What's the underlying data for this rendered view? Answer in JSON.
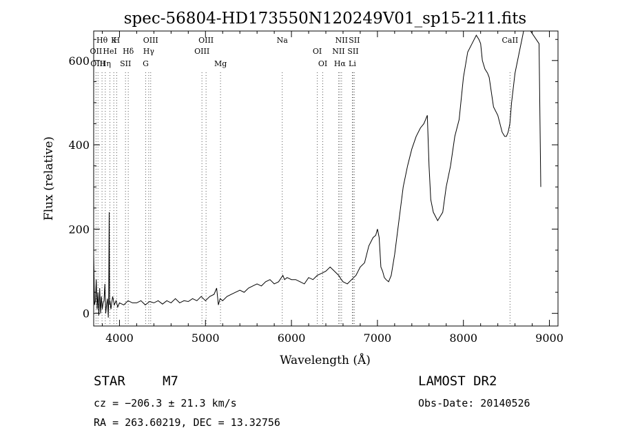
{
  "chart_data": {
    "type": "line",
    "title": "spec-56804-HD173550N120249V01_sp15-211.fits",
    "xlabel": "Wavelength (Å)",
    "ylabel": "Flux (relative)",
    "xlim": [
      3700,
      9100
    ],
    "ylim": [
      -30,
      670
    ],
    "xticks": [
      4000,
      5000,
      6000,
      7000,
      8000,
      9000
    ],
    "yticks": [
      0,
      200,
      400,
      600
    ],
    "grid": false,
    "series": [
      {
        "x": [
          3700,
          3710,
          3720,
          3730,
          3740,
          3750,
          3760,
          3770,
          3780,
          3790,
          3800,
          3810,
          3820,
          3830,
          3840,
          3850,
          3860,
          3870,
          3875,
          3880,
          3885,
          3890,
          3900,
          3920,
          3940,
          3960,
          3980,
          4000,
          4050,
          4100,
          4150,
          4200,
          4250,
          4300,
          4350,
          4400,
          4450,
          4500,
          4550,
          4600,
          4650,
          4700,
          4750,
          4800,
          4850,
          4900,
          4950,
          5000,
          5050,
          5100,
          5130,
          5150,
          5170,
          5200,
          5250,
          5300,
          5350,
          5400,
          5450,
          5500,
          5550,
          5600,
          5650,
          5700,
          5750,
          5800,
          5850,
          5900,
          5920,
          5950,
          6000,
          6050,
          6100,
          6150,
          6200,
          6250,
          6300,
          6350,
          6400,
          6450,
          6500,
          6550,
          6580,
          6600,
          6650,
          6700,
          6750,
          6800,
          6850,
          6900,
          6950,
          6980,
          7000,
          7020,
          7040,
          7060,
          7080,
          7100,
          7130,
          7160,
          7200,
          7250,
          7300,
          7350,
          7400,
          7450,
          7500,
          7540,
          7560,
          7580,
          7600,
          7620,
          7650,
          7700,
          7730,
          7760,
          7800,
          7850,
          7900,
          7950,
          8000,
          8050,
          8100,
          8150,
          8180,
          8200,
          8220,
          8250,
          8280,
          8300,
          8350,
          8400,
          8450,
          8480,
          8500,
          8520,
          8540,
          8560,
          8600,
          8650,
          8700,
          8780,
          8880,
          8900
        ],
        "y": [
          140,
          20,
          30,
          80,
          10,
          50,
          -5,
          60,
          0,
          40,
          10,
          25,
          30,
          70,
          0,
          20,
          35,
          -10,
          45,
          240,
          20,
          30,
          10,
          40,
          20,
          30,
          15,
          25,
          20,
          30,
          25,
          25,
          30,
          20,
          28,
          25,
          30,
          22,
          30,
          25,
          35,
          25,
          30,
          28,
          35,
          30,
          40,
          30,
          40,
          45,
          60,
          20,
          35,
          30,
          40,
          45,
          50,
          55,
          50,
          60,
          65,
          70,
          65,
          75,
          80,
          70,
          75,
          90,
          80,
          85,
          80,
          80,
          75,
          70,
          85,
          80,
          90,
          95,
          100,
          110,
          100,
          90,
          80,
          75,
          70,
          80,
          90,
          110,
          120,
          160,
          180,
          185,
          200,
          180,
          110,
          100,
          85,
          80,
          75,
          90,
          140,
          220,
          300,
          350,
          390,
          420,
          440,
          450,
          460,
          470,
          350,
          270,
          240,
          220,
          230,
          240,
          300,
          350,
          420,
          460,
          560,
          620,
          640,
          660,
          650,
          640,
          600,
          580,
          570,
          560,
          490,
          470,
          430,
          420,
          420,
          430,
          450,
          500,
          570,
          620,
          680,
          670,
          640,
          300
        ]
      }
    ],
    "line_markers": [
      {
        "label": "Hθ",
        "x": 3797
      },
      {
        "label": "OII",
        "x": 3727
      },
      {
        "label": "OIII",
        "x": 3750
      },
      {
        "label": "K",
        "x": 3934
      },
      {
        "label": "HeI",
        "x": 3889
      },
      {
        "label": "Hη",
        "x": 3835
      },
      {
        "label": "H",
        "x": 3968
      },
      {
        "label": "Hδ",
        "x": 4102
      },
      {
        "label": "SII",
        "x": 4070
      },
      {
        "label": "OIII",
        "x": 4363
      },
      {
        "label": "Hγ",
        "x": 4340
      },
      {
        "label": "G",
        "x": 4305
      },
      {
        "label": "OIII",
        "x": 5007
      },
      {
        "label": "OIII",
        "x": 4959
      },
      {
        "label": "Mg",
        "x": 5175
      },
      {
        "label": "Na",
        "x": 5893
      },
      {
        "label": "OI",
        "x": 6300
      },
      {
        "label": "OI",
        "x": 6364
      },
      {
        "label": "NII",
        "x": 6583
      },
      {
        "label": "SII",
        "x": 6716
      },
      {
        "label": "Hα",
        "x": 6563
      },
      {
        "label": "SII",
        "x": 6731
      },
      {
        "label": "NII",
        "x": 6548
      },
      {
        "label": "Li",
        "x": 6708
      },
      {
        "label": "CaII",
        "x": 8542
      }
    ]
  },
  "info": {
    "object_class": "STAR",
    "subclass": "M7",
    "survey": "LAMOST DR2",
    "cz": "cz = −206.3 ± 21.3 km/s",
    "obs_date": "Obs-Date: 20140526",
    "coords": "RA = 263.60219, DEC =  13.32756"
  }
}
